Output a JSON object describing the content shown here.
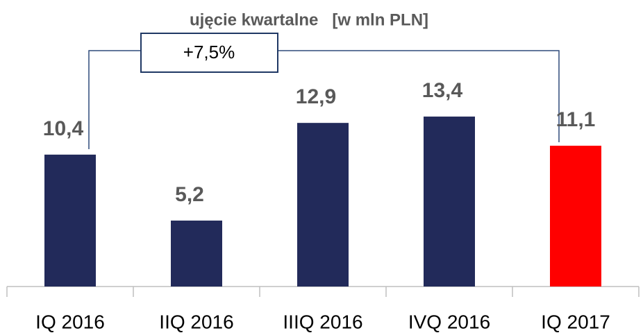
{
  "chart_data": {
    "type": "bar",
    "title": "ujęcie kwartalne   [w mln PLN]",
    "annotation": "+7,5%",
    "categories": [
      "IQ 2016",
      "IIQ 2016",
      "IIIQ 2016",
      "IVQ 2016",
      "IQ 2017"
    ],
    "values": [
      10.4,
      5.2,
      12.9,
      13.4,
      11.1
    ],
    "value_labels": [
      "10,4",
      "5,2",
      "12,9",
      "13,4",
      "11,1"
    ],
    "colors": [
      "#222a5a",
      "#222a5a",
      "#222a5a",
      "#222a5a",
      "#ff0000"
    ],
    "ylim": [
      0,
      16
    ],
    "grid": false
  }
}
